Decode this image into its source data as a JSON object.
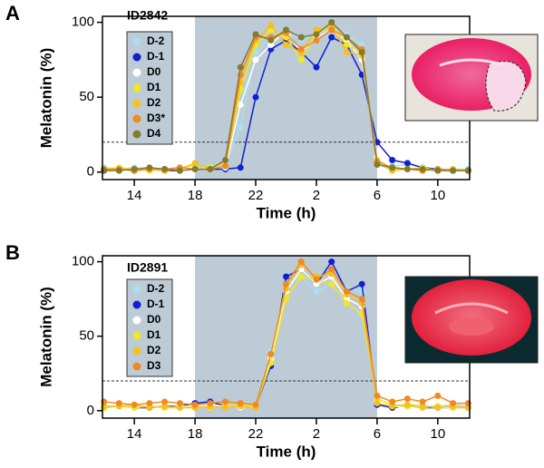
{
  "chart_data": [
    {
      "type": "line",
      "panel_label": "A",
      "annotation": "ID2842",
      "x_label": "Time (h)",
      "y_label": "Melatonin (%)",
      "x": [
        12,
        13,
        14,
        15,
        16,
        17,
        18,
        19,
        20,
        21,
        22,
        23,
        24,
        25,
        26,
        27,
        28,
        29,
        30,
        31,
        32,
        33,
        34,
        35,
        36
      ],
      "xlim": [
        11.9,
        36.1
      ],
      "xticks": [
        14,
        18,
        22,
        {
          "value": 26,
          "label": "2"
        },
        {
          "value": 30,
          "label": "6"
        },
        {
          "value": 34,
          "label": "10"
        }
      ],
      "ylim": [
        -5,
        104
      ],
      "yticks": [
        0,
        50,
        100
      ],
      "night": [
        18,
        30
      ],
      "threshold": 20,
      "series": [
        {
          "name": "D-2",
          "color": "#a8e0f0",
          "values": [
            3,
            2,
            3,
            2,
            2,
            3,
            2,
            3,
            4,
            30,
            80,
            90,
            95,
            88,
            92,
            96,
            92,
            85,
            8,
            4,
            5,
            3,
            2,
            2,
            2
          ]
        },
        {
          "name": "D-1",
          "color": "#1020d0",
          "values": [
            1,
            2,
            1,
            2,
            1,
            1,
            2,
            2,
            2,
            3,
            50,
            82,
            88,
            80,
            70,
            90,
            85,
            65,
            20,
            8,
            6,
            3,
            2,
            1,
            1
          ]
        },
        {
          "name": "D0",
          "color": "#ffffff",
          "values": [
            2,
            1,
            2,
            1,
            3,
            2,
            2,
            3,
            3,
            45,
            75,
            85,
            95,
            80,
            90,
            95,
            88,
            75,
            10,
            3,
            2,
            1,
            2,
            1,
            1
          ]
        },
        {
          "name": "D1",
          "color": "#f0e820",
          "values": [
            2,
            3,
            2,
            1,
            2,
            2,
            5,
            3,
            5,
            55,
            85,
            95,
            90,
            75,
            92,
            98,
            85,
            80,
            8,
            2,
            2,
            3,
            1,
            1,
            1
          ]
        },
        {
          "name": "D2",
          "color": "#f5c020",
          "values": [
            1,
            2,
            2,
            2,
            1,
            2,
            6,
            2,
            4,
            60,
            88,
            98,
            85,
            80,
            95,
            97,
            80,
            78,
            6,
            1,
            2,
            2,
            1,
            2,
            1
          ]
        },
        {
          "name": "D3*",
          "color": "#f08a20",
          "values": [
            2,
            2,
            1,
            2,
            2,
            3,
            2,
            2,
            4,
            65,
            90,
            90,
            93,
            82,
            88,
            95,
            90,
            82,
            7,
            3,
            2,
            1,
            2,
            1,
            1
          ]
        },
        {
          "name": "D4",
          "color": "#857a30",
          "values": [
            1,
            1,
            2,
            3,
            2,
            1,
            2,
            2,
            8,
            70,
            92,
            88,
            95,
            90,
            92,
            100,
            90,
            80,
            5,
            3,
            2,
            2,
            1,
            1,
            1
          ]
        }
      ]
    },
    {
      "type": "line",
      "panel_label": "B",
      "annotation": "ID2891",
      "x_label": "Time (h)",
      "y_label": "Melatonin (%)",
      "x": [
        12,
        13,
        14,
        15,
        16,
        17,
        18,
        19,
        20,
        21,
        22,
        23,
        24,
        25,
        26,
        27,
        28,
        29,
        30,
        31,
        32,
        33,
        34,
        35,
        36
      ],
      "xlim": [
        11.9,
        36.1
      ],
      "xticks": [
        14,
        18,
        22,
        {
          "value": 26,
          "label": "2"
        },
        {
          "value": 30,
          "label": "6"
        },
        {
          "value": 34,
          "label": "10"
        }
      ],
      "ylim": [
        -5,
        104
      ],
      "yticks": [
        0,
        50,
        100
      ],
      "night": [
        18,
        30
      ],
      "threshold": 20,
      "series": [
        {
          "name": "D-2",
          "color": "#a8e0f0",
          "values": [
            2,
            3,
            2,
            3,
            2,
            3,
            4,
            3,
            2,
            3,
            4,
            40,
            85,
            90,
            80,
            85,
            82,
            80,
            5,
            3,
            4,
            3,
            3,
            4,
            3
          ]
        },
        {
          "name": "D-1",
          "color": "#1020d0",
          "values": [
            2,
            3,
            2,
            2,
            3,
            3,
            5,
            6,
            3,
            2,
            3,
            30,
            90,
            95,
            85,
            100,
            80,
            85,
            4,
            2,
            3,
            2,
            2,
            2,
            2
          ]
        },
        {
          "name": "D0",
          "color": "#ffffff",
          "values": [
            3,
            2,
            2,
            3,
            2,
            3,
            3,
            4,
            3,
            2,
            3,
            35,
            80,
            95,
            85,
            90,
            75,
            70,
            6,
            3,
            2,
            3,
            2,
            2,
            2
          ]
        },
        {
          "name": "D1",
          "color": "#f0e820",
          "values": [
            2,
            3,
            2,
            3,
            2,
            2,
            3,
            2,
            3,
            4,
            3,
            32,
            75,
            90,
            88,
            85,
            72,
            65,
            8,
            4,
            3,
            2,
            3,
            2,
            2
          ]
        },
        {
          "name": "D2",
          "color": "#f5c020",
          "values": [
            3,
            3,
            4,
            2,
            3,
            2,
            2,
            3,
            2,
            3,
            2,
            38,
            82,
            98,
            90,
            92,
            78,
            72,
            5,
            3,
            4,
            3,
            2,
            3,
            2
          ]
        },
        {
          "name": "D3",
          "color": "#f08a20",
          "values": [
            6,
            5,
            4,
            5,
            6,
            5,
            4,
            5,
            6,
            5,
            4,
            38,
            85,
            100,
            88,
            95,
            80,
            75,
            10,
            6,
            8,
            6,
            10,
            5,
            5
          ]
        }
      ]
    }
  ]
}
